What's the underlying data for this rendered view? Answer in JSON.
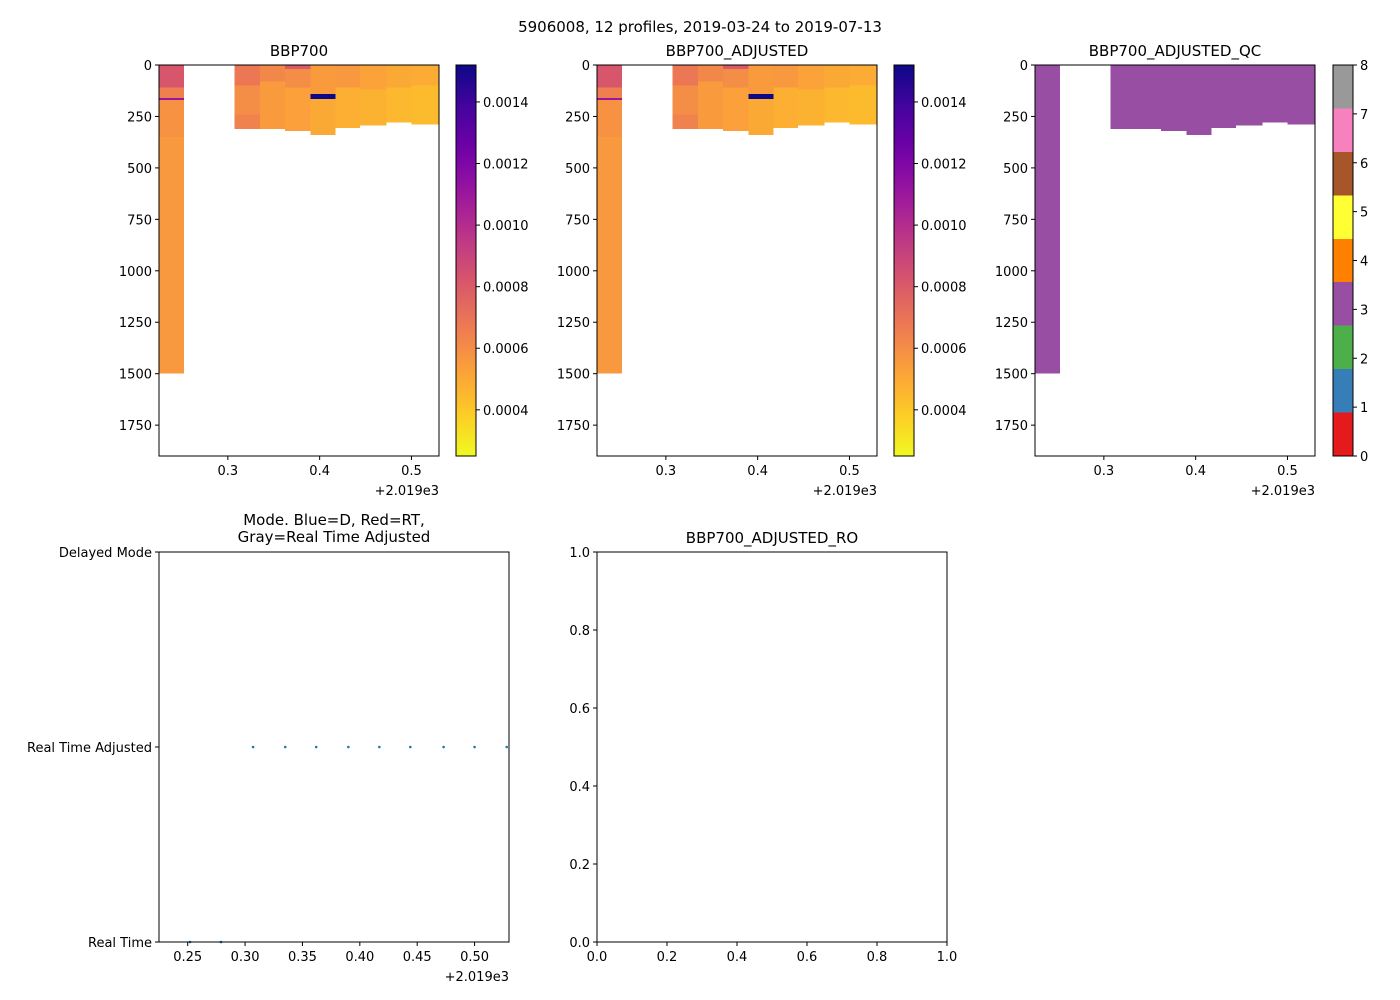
{
  "suptitle": "5906008, 12 profiles, 2019-03-24 to 2019-07-13",
  "x_offset_label": "+2.019e3",
  "chart_data": [
    {
      "id": "bbp700",
      "type": "heatmap",
      "title": "BBP700",
      "xlim": [
        0.225,
        0.53
      ],
      "ylim": [
        1900,
        0
      ],
      "x_ticks": [
        "0.3",
        "0.4",
        "0.5"
      ],
      "x_tick_values": [
        0.3,
        0.4,
        0.5
      ],
      "y_ticks": [
        "0",
        "250",
        "500",
        "750",
        "1000",
        "1250",
        "1500",
        "1750"
      ],
      "y_tick_values": [
        0,
        250,
        500,
        750,
        1000,
        1250,
        1500,
        1750
      ],
      "colorbar": {
        "cmap": "plasma_r",
        "range": [
          0.00025,
          0.00152
        ],
        "ticks": [
          "0.0004",
          "0.0006",
          "0.0008",
          "0.0010",
          "0.0012",
          "0.0014"
        ],
        "tick_values": [
          0.0004,
          0.0006,
          0.0008,
          0.001,
          0.0012,
          0.0014
        ]
      },
      "profiles": [
        {
          "x0": 0.225,
          "x1": 0.252,
          "segments": [
            {
              "d0": 0,
              "d1": 110,
              "v": 0.00082
            },
            {
              "d0": 110,
              "d1": 160,
              "v": 0.00065
            },
            {
              "d0": 160,
              "d1": 170,
              "v": 0.0011
            },
            {
              "d0": 170,
              "d1": 350,
              "v": 0.00058
            },
            {
              "d0": 350,
              "d1": 1500,
              "v": 0.00056
            }
          ]
        },
        {
          "x0": 0.307,
          "x1": 0.335,
          "segments": [
            {
              "d0": 0,
              "d1": 100,
              "v": 0.00068
            },
            {
              "d0": 100,
              "d1": 240,
              "v": 0.0006
            },
            {
              "d0": 240,
              "d1": 310,
              "v": 0.00064
            }
          ]
        },
        {
          "x0": 0.335,
          "x1": 0.362,
          "segments": [
            {
              "d0": 0,
              "d1": 80,
              "v": 0.00062
            },
            {
              "d0": 80,
              "d1": 310,
              "v": 0.00055
            }
          ]
        },
        {
          "x0": 0.362,
          "x1": 0.39,
          "segments": [
            {
              "d0": 0,
              "d1": 20,
              "v": 0.0008
            },
            {
              "d0": 20,
              "d1": 110,
              "v": 0.0006
            },
            {
              "d0": 110,
              "d1": 320,
              "v": 0.00053
            }
          ]
        },
        {
          "x0": 0.39,
          "x1": 0.417,
          "segments": [
            {
              "d0": 0,
              "d1": 140,
              "v": 0.00055
            },
            {
              "d0": 140,
              "d1": 165,
              "v": 0.00152
            },
            {
              "d0": 165,
              "d1": 340,
              "v": 0.0005
            }
          ]
        },
        {
          "x0": 0.417,
          "x1": 0.444,
          "segments": [
            {
              "d0": 0,
              "d1": 110,
              "v": 0.00056
            },
            {
              "d0": 110,
              "d1": 305,
              "v": 0.00048
            }
          ]
        },
        {
          "x0": 0.444,
          "x1": 0.473,
          "segments": [
            {
              "d0": 0,
              "d1": 120,
              "v": 0.00052
            },
            {
              "d0": 120,
              "d1": 295,
              "v": 0.00047
            }
          ]
        },
        {
          "x0": 0.473,
          "x1": 0.5,
          "segments": [
            {
              "d0": 0,
              "d1": 110,
              "v": 0.0005
            },
            {
              "d0": 110,
              "d1": 280,
              "v": 0.00045
            }
          ]
        },
        {
          "x0": 0.5,
          "x1": 0.53,
          "segments": [
            {
              "d0": 0,
              "d1": 100,
              "v": 0.00049
            },
            {
              "d0": 100,
              "d1": 290,
              "v": 0.00044
            }
          ]
        }
      ]
    },
    {
      "id": "bbp700_adjusted",
      "type": "heatmap",
      "title": "BBP700_ADJUSTED",
      "xlim": [
        0.225,
        0.53
      ],
      "ylim": [
        1900,
        0
      ],
      "x_ticks": [
        "0.3",
        "0.4",
        "0.5"
      ],
      "x_tick_values": [
        0.3,
        0.4,
        0.5
      ],
      "y_ticks": [
        "0",
        "250",
        "500",
        "750",
        "1000",
        "1250",
        "1500",
        "1750"
      ],
      "y_tick_values": [
        0,
        250,
        500,
        750,
        1000,
        1250,
        1500,
        1750
      ],
      "colorbar": {
        "cmap": "plasma_r",
        "range": [
          0.00025,
          0.00152
        ],
        "ticks": [
          "0.0004",
          "0.0006",
          "0.0008",
          "0.0010",
          "0.0012",
          "0.0014"
        ],
        "tick_values": [
          0.0004,
          0.0006,
          0.0008,
          0.001,
          0.0012,
          0.0014
        ]
      },
      "profiles": [
        {
          "x0": 0.225,
          "x1": 0.252,
          "segments": [
            {
              "d0": 0,
              "d1": 110,
              "v": 0.00082
            },
            {
              "d0": 110,
              "d1": 160,
              "v": 0.00065
            },
            {
              "d0": 160,
              "d1": 170,
              "v": 0.0011
            },
            {
              "d0": 170,
              "d1": 350,
              "v": 0.00058
            },
            {
              "d0": 350,
              "d1": 1500,
              "v": 0.00056
            }
          ]
        },
        {
          "x0": 0.307,
          "x1": 0.335,
          "segments": [
            {
              "d0": 0,
              "d1": 100,
              "v": 0.00068
            },
            {
              "d0": 100,
              "d1": 240,
              "v": 0.0006
            },
            {
              "d0": 240,
              "d1": 310,
              "v": 0.00064
            }
          ]
        },
        {
          "x0": 0.335,
          "x1": 0.362,
          "segments": [
            {
              "d0": 0,
              "d1": 80,
              "v": 0.00062
            },
            {
              "d0": 80,
              "d1": 310,
              "v": 0.00055
            }
          ]
        },
        {
          "x0": 0.362,
          "x1": 0.39,
          "segments": [
            {
              "d0": 0,
              "d1": 20,
              "v": 0.0008
            },
            {
              "d0": 20,
              "d1": 110,
              "v": 0.0006
            },
            {
              "d0": 110,
              "d1": 320,
              "v": 0.00053
            }
          ]
        },
        {
          "x0": 0.39,
          "x1": 0.417,
          "segments": [
            {
              "d0": 0,
              "d1": 140,
              "v": 0.00055
            },
            {
              "d0": 140,
              "d1": 165,
              "v": 0.00152
            },
            {
              "d0": 165,
              "d1": 340,
              "v": 0.0005
            }
          ]
        },
        {
          "x0": 0.417,
          "x1": 0.444,
          "segments": [
            {
              "d0": 0,
              "d1": 110,
              "v": 0.00056
            },
            {
              "d0": 110,
              "d1": 305,
              "v": 0.00048
            }
          ]
        },
        {
          "x0": 0.444,
          "x1": 0.473,
          "segments": [
            {
              "d0": 0,
              "d1": 120,
              "v": 0.00052
            },
            {
              "d0": 120,
              "d1": 295,
              "v": 0.00047
            }
          ]
        },
        {
          "x0": 0.473,
          "x1": 0.5,
          "segments": [
            {
              "d0": 0,
              "d1": 110,
              "v": 0.0005
            },
            {
              "d0": 110,
              "d1": 280,
              "v": 0.00045
            }
          ]
        },
        {
          "x0": 0.5,
          "x1": 0.53,
          "segments": [
            {
              "d0": 0,
              "d1": 100,
              "v": 0.00049
            },
            {
              "d0": 100,
              "d1": 290,
              "v": 0.00044
            }
          ]
        }
      ]
    },
    {
      "id": "bbp700_adjusted_qc",
      "type": "heatmap",
      "title": "BBP700_ADJUSTED_QC",
      "xlim": [
        0.225,
        0.53
      ],
      "ylim": [
        1900,
        0
      ],
      "x_ticks": [
        "0.3",
        "0.4",
        "0.5"
      ],
      "x_tick_values": [
        0.3,
        0.4,
        0.5
      ],
      "y_ticks": [
        "0",
        "250",
        "500",
        "750",
        "1000",
        "1250",
        "1500",
        "1750"
      ],
      "y_tick_values": [
        0,
        250,
        500,
        750,
        1000,
        1250,
        1500,
        1750
      ],
      "colorbar": {
        "cmap": "qc",
        "range": [
          0,
          8
        ],
        "ticks": [
          "0",
          "1",
          "2",
          "3",
          "4",
          "5",
          "6",
          "7",
          "8"
        ],
        "tick_values": [
          0,
          1,
          2,
          3,
          4,
          5,
          6,
          7,
          8
        ],
        "classes": [
          {
            "v0": 0,
            "v1": 0.89,
            "color": "#e41a1c"
          },
          {
            "v0": 0.89,
            "v1": 1.78,
            "color": "#377eb8"
          },
          {
            "v0": 1.78,
            "v1": 2.67,
            "color": "#4daf4a"
          },
          {
            "v0": 2.67,
            "v1": 3.56,
            "color": "#984ea3"
          },
          {
            "v0": 3.56,
            "v1": 4.44,
            "color": "#ff7f00"
          },
          {
            "v0": 4.44,
            "v1": 5.33,
            "color": "#ffff33"
          },
          {
            "v0": 5.33,
            "v1": 6.22,
            "color": "#a65628"
          },
          {
            "v0": 6.22,
            "v1": 7.11,
            "color": "#f781bf"
          },
          {
            "v0": 7.11,
            "v1": 8,
            "color": "#999999"
          }
        ]
      },
      "profiles": [
        {
          "x0": 0.225,
          "x1": 0.252,
          "segments": [
            {
              "d0": 0,
              "d1": 1500,
              "v": 3
            }
          ]
        },
        {
          "x0": 0.307,
          "x1": 0.335,
          "segments": [
            {
              "d0": 0,
              "d1": 310,
              "v": 3
            }
          ]
        },
        {
          "x0": 0.335,
          "x1": 0.362,
          "segments": [
            {
              "d0": 0,
              "d1": 310,
              "v": 3
            }
          ]
        },
        {
          "x0": 0.362,
          "x1": 0.39,
          "segments": [
            {
              "d0": 0,
              "d1": 320,
              "v": 3
            }
          ]
        },
        {
          "x0": 0.39,
          "x1": 0.417,
          "segments": [
            {
              "d0": 0,
              "d1": 340,
              "v": 3
            }
          ]
        },
        {
          "x0": 0.417,
          "x1": 0.444,
          "segments": [
            {
              "d0": 0,
              "d1": 305,
              "v": 3
            }
          ]
        },
        {
          "x0": 0.444,
          "x1": 0.473,
          "segments": [
            {
              "d0": 0,
              "d1": 295,
              "v": 3
            }
          ]
        },
        {
          "x0": 0.473,
          "x1": 0.5,
          "segments": [
            {
              "d0": 0,
              "d1": 280,
              "v": 3
            }
          ]
        },
        {
          "x0": 0.5,
          "x1": 0.53,
          "segments": [
            {
              "d0": 0,
              "d1": 290,
              "v": 3
            }
          ]
        }
      ]
    },
    {
      "id": "mode",
      "type": "scatter",
      "title_lines": [
        "Mode. Blue=D, Red=RT,",
        "Gray=Real Time Adjusted"
      ],
      "xlim": [
        0.225,
        0.53
      ],
      "ylim": [
        0,
        2
      ],
      "x_ticks": [
        "0.25",
        "0.30",
        "0.35",
        "0.40",
        "0.45",
        "0.50"
      ],
      "x_tick_values": [
        0.25,
        0.3,
        0.35,
        0.4,
        0.45,
        0.5
      ],
      "y_ticks": [
        "Real Time",
        "Real Time Adjusted",
        "Delayed Mode"
      ],
      "y_tick_values": [
        0,
        1,
        2
      ],
      "marker_color": "#1f77b4",
      "points": [
        {
          "x": 0.252,
          "y": 0
        },
        {
          "x": 0.279,
          "y": 0
        },
        {
          "x": 0.307,
          "y": 1
        },
        {
          "x": 0.335,
          "y": 1
        },
        {
          "x": 0.362,
          "y": 1
        },
        {
          "x": 0.39,
          "y": 1
        },
        {
          "x": 0.417,
          "y": 1
        },
        {
          "x": 0.444,
          "y": 1
        },
        {
          "x": 0.473,
          "y": 1
        },
        {
          "x": 0.5,
          "y": 1
        },
        {
          "x": 0.528,
          "y": 1
        }
      ]
    },
    {
      "id": "bbp700_adjusted_ro",
      "type": "scatter",
      "title": "BBP700_ADJUSTED_RO",
      "xlim": [
        0,
        1
      ],
      "ylim": [
        0,
        1
      ],
      "x_ticks": [
        "0.0",
        "0.2",
        "0.4",
        "0.6",
        "0.8",
        "1.0"
      ],
      "x_tick_values": [
        0,
        0.2,
        0.4,
        0.6,
        0.8,
        1.0
      ],
      "y_ticks": [
        "0.0",
        "0.2",
        "0.4",
        "0.6",
        "0.8",
        "1.0"
      ],
      "y_tick_values": [
        0,
        0.2,
        0.4,
        0.6,
        0.8,
        1.0
      ],
      "points": []
    }
  ]
}
